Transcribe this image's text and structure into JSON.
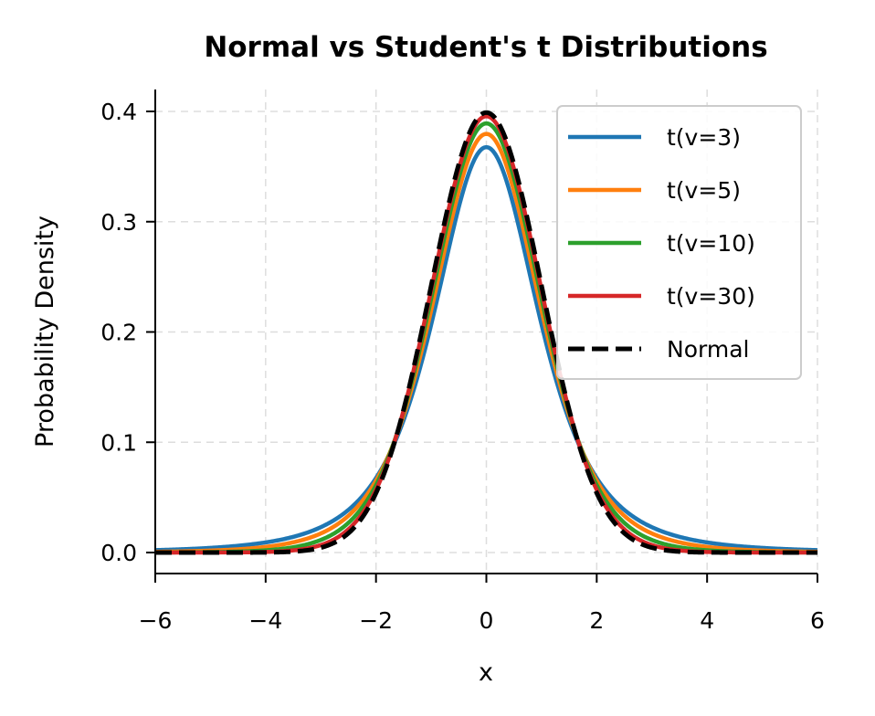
{
  "chart_data": {
    "type": "line",
    "title": "Normal vs Student's t Distributions",
    "xlabel": "x",
    "ylabel": "Probability Density",
    "xlim": [
      -6,
      6
    ],
    "ylim": [
      -0.02,
      0.42
    ],
    "xticks": [
      "−6",
      "−4",
      "−2",
      "0",
      "2",
      "4",
      "6"
    ],
    "xtick_values": [
      -6,
      -4,
      -2,
      0,
      2,
      4,
      6
    ],
    "yticks": [
      "0.0",
      "0.1",
      "0.2",
      "0.3",
      "0.4"
    ],
    "ytick_values": [
      0,
      0.1,
      0.2,
      0.3,
      0.4
    ],
    "grid": true,
    "legend_position": "top-right",
    "series": [
      {
        "name": "t(v=3)",
        "distribution": "student-t",
        "df": 3,
        "peak": 0.368,
        "color": "#1f77b4",
        "style": "solid"
      },
      {
        "name": "t(v=5)",
        "distribution": "student-t",
        "df": 5,
        "peak": 0.38,
        "color": "#ff7f0e",
        "style": "solid"
      },
      {
        "name": "t(v=10)",
        "distribution": "student-t",
        "df": 10,
        "peak": 0.389,
        "color": "#2ca02c",
        "style": "solid"
      },
      {
        "name": "t(v=30)",
        "distribution": "student-t",
        "df": 30,
        "peak": 0.396,
        "color": "#d62728",
        "style": "solid"
      },
      {
        "name": "Normal",
        "distribution": "normal",
        "mean": 0,
        "sd": 1,
        "peak": 0.399,
        "color": "#000000",
        "style": "dashed"
      }
    ]
  }
}
